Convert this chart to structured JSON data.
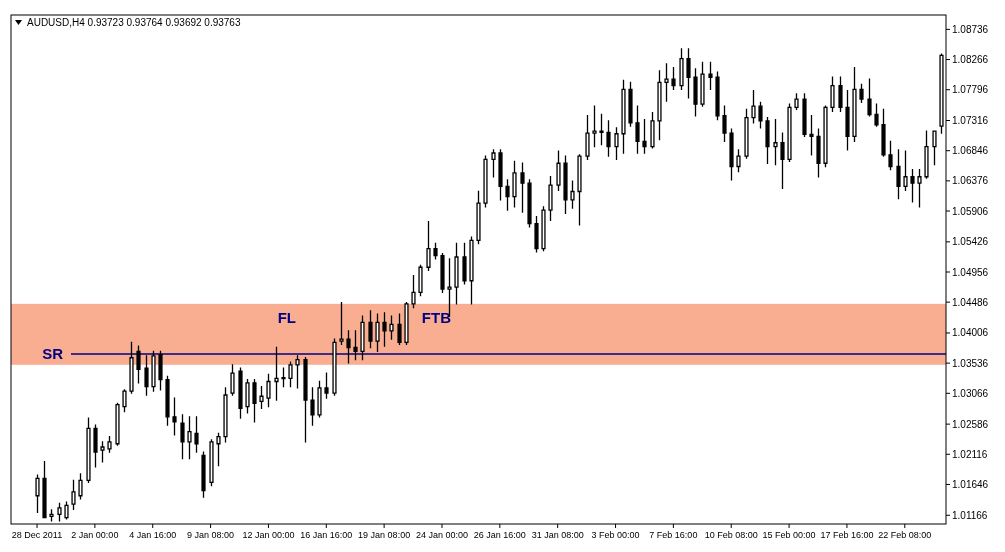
{
  "chart_data": {
    "type": "candlestick",
    "title": "AUDUSD,H4 0.93723 0.93764 0.93692 0.93763",
    "categories": [
      "28 Dec 2011",
      null,
      null,
      null,
      null,
      null,
      null,
      null,
      "2 Jan 00:00",
      null,
      null,
      null,
      null,
      null,
      null,
      null,
      "4 Jan 16:00",
      null,
      null,
      null,
      null,
      null,
      null,
      null,
      "9 Jan 08:00",
      null,
      null,
      null,
      null,
      null,
      null,
      null,
      "12 Jan 00:00",
      null,
      null,
      null,
      null,
      null,
      null,
      null,
      "16 Jan 16:00",
      null,
      null,
      null,
      null,
      null,
      null,
      null,
      "19 Jan 08:00",
      null,
      null,
      null,
      null,
      null,
      null,
      null,
      "24 Jan 00:00",
      null,
      null,
      null,
      null,
      null,
      null,
      null,
      "26 Jan 16:00",
      null,
      null,
      null,
      null,
      null,
      null,
      null,
      "31 Jan 08:00",
      null,
      null,
      null,
      null,
      null,
      null,
      null,
      "3 Feb 00:00",
      null,
      null,
      null,
      null,
      null,
      null,
      null,
      "7 Feb 16:00",
      null,
      null,
      null,
      null,
      null,
      null,
      null,
      "10 Feb 08:00",
      null,
      null,
      null,
      null,
      null,
      null,
      null,
      "15 Feb 00:00",
      null,
      null,
      null,
      null,
      null,
      null,
      null,
      "17 Feb 16:00",
      null,
      null,
      null,
      null,
      null,
      null,
      null,
      "22 Feb 08:00",
      null,
      null,
      null,
      null,
      null
    ],
    "ohlc": [
      [
        1.0147,
        1.0179,
        1.0121,
        1.0174
      ],
      [
        1.0174,
        1.02,
        1.0113,
        1.0113
      ],
      [
        1.0115,
        1.0125,
        1.0108,
        1.0118
      ],
      [
        1.0118,
        1.0135,
        1.0108,
        1.0128
      ],
      [
        1.0113,
        1.0137,
        1.0111,
        1.0132
      ],
      [
        1.0134,
        1.0171,
        1.0126,
        1.0153
      ],
      [
        1.0147,
        1.0181,
        1.0142,
        1.0171
      ],
      [
        1.0171,
        1.0268,
        1.0168,
        1.0252
      ],
      [
        1.0252,
        1.0257,
        1.0192,
        1.0215
      ],
      [
        1.0218,
        1.0231,
        1.02,
        1.0223
      ],
      [
        1.022,
        1.0239,
        1.0215,
        1.0231
      ],
      [
        1.0228,
        1.0291,
        1.0226,
        1.0289
      ],
      [
        1.0286,
        1.0312,
        1.0278,
        1.031
      ],
      [
        1.031,
        1.0386,
        1.0307,
        1.0362
      ],
      [
        1.0372,
        1.038,
        1.0323,
        1.0344
      ],
      [
        1.0346,
        1.0365,
        1.0304,
        1.0317
      ],
      [
        1.0317,
        1.0372,
        1.031,
        1.0365
      ],
      [
        1.0367,
        1.0372,
        1.0312,
        1.0328
      ],
      [
        1.0328,
        1.0333,
        1.0257,
        1.027
      ],
      [
        1.027,
        1.0299,
        1.0242,
        1.0262
      ],
      [
        1.026,
        1.0273,
        1.0205,
        1.0231
      ],
      [
        1.0231,
        1.027,
        1.0205,
        1.0247
      ],
      [
        1.0244,
        1.027,
        1.0215,
        1.0228
      ],
      [
        1.021,
        1.0215,
        1.0145,
        1.0155
      ],
      [
        1.0168,
        1.0234,
        1.0163,
        1.0231
      ],
      [
        1.0228,
        1.0244,
        1.0194,
        1.0239
      ],
      [
        1.0239,
        1.0315,
        1.0231,
        1.0304
      ],
      [
        1.0307,
        1.0351,
        1.0304,
        1.0338
      ],
      [
        1.0341,
        1.0346,
        1.0268,
        1.0283
      ],
      [
        1.0286,
        1.0328,
        1.0276,
        1.0323
      ],
      [
        1.0323,
        1.0328,
        1.0262,
        1.0291
      ],
      [
        1.0294,
        1.0317,
        1.0283,
        1.0302
      ],
      [
        1.0299,
        1.0336,
        1.0286,
        1.0325
      ],
      [
        1.0325,
        1.0378,
        1.0296,
        1.033
      ],
      [
        1.033,
        1.0346,
        1.0317,
        1.0331
      ],
      [
        1.033,
        1.0355,
        1.0317,
        1.0351
      ],
      [
        1.0351,
        1.0365,
        1.0315,
        1.0359
      ],
      [
        1.0359,
        1.0362,
        1.0231,
        1.0296
      ],
      [
        1.0296,
        1.0315,
        1.0257,
        1.0273
      ],
      [
        1.0273,
        1.0325,
        1.027,
        1.0315
      ],
      [
        1.0315,
        1.0338,
        1.0299,
        1.0307
      ],
      [
        1.0307,
        1.0391,
        1.0304,
        1.0386
      ],
      [
        1.0388,
        1.0448,
        1.0383,
        1.0391
      ],
      [
        1.0391,
        1.0404,
        1.0354,
        1.0378
      ],
      [
        1.0378,
        1.0404,
        1.0359,
        1.0372
      ],
      [
        1.0372,
        1.0427,
        1.0359,
        1.0417
      ],
      [
        1.0417,
        1.0435,
        1.0378,
        1.0388
      ],
      [
        1.0388,
        1.043,
        1.0372,
        1.0417
      ],
      [
        1.0417,
        1.0432,
        1.038,
        1.0404
      ],
      [
        1.0404,
        1.0427,
        1.0391,
        1.0414
      ],
      [
        1.0414,
        1.043,
        1.0383,
        1.0386
      ],
      [
        1.0386,
        1.0448,
        1.0383,
        1.0446
      ],
      [
        1.0446,
        1.049,
        1.044,
        1.0464
      ],
      [
        1.0464,
        1.0506,
        1.0459,
        1.0503
      ],
      [
        1.0503,
        1.0574,
        1.0498,
        1.0532
      ],
      [
        1.0532,
        1.054,
        1.0516,
        1.0521
      ],
      [
        1.0521,
        1.0524,
        1.0464,
        1.0469
      ],
      [
        1.0469,
        1.0516,
        1.0427,
        1.0472
      ],
      [
        1.0472,
        1.054,
        1.0446,
        1.0519
      ],
      [
        1.0519,
        1.054,
        1.0477,
        1.0482
      ],
      [
        1.0482,
        1.055,
        1.0446,
        1.0545
      ],
      [
        1.0545,
        1.0621,
        1.054,
        1.0603
      ],
      [
        1.0603,
        1.0676,
        1.0597,
        1.0671
      ],
      [
        1.0671,
        1.0686,
        1.0644,
        1.0681
      ],
      [
        1.0681,
        1.0686,
        1.0608,
        1.0629
      ],
      [
        1.0629,
        1.0639,
        1.0592,
        1.0613
      ],
      [
        1.0613,
        1.0668,
        1.0597,
        1.065
      ],
      [
        1.065,
        1.0665,
        1.0589,
        1.0634
      ],
      [
        1.0634,
        1.0639,
        1.0566,
        1.0571
      ],
      [
        1.0571,
        1.0582,
        1.0527,
        1.0532
      ],
      [
        1.0532,
        1.0597,
        1.0529,
        1.0592
      ],
      [
        1.0592,
        1.0644,
        1.0576,
        1.0631
      ],
      [
        1.0631,
        1.0684,
        1.0623,
        1.0665
      ],
      [
        1.0665,
        1.0676,
        1.0587,
        1.0608
      ],
      [
        1.0608,
        1.0637,
        1.0595,
        1.0621
      ],
      [
        1.0621,
        1.0678,
        1.0569,
        1.0676
      ],
      [
        1.0676,
        1.0739,
        1.0671,
        1.0712
      ],
      [
        1.0712,
        1.0754,
        1.0691,
        1.0715
      ],
      [
        1.0715,
        1.0741,
        1.0694,
        1.0713
      ],
      [
        1.0713,
        1.0731,
        1.0676,
        1.0691
      ],
      [
        1.0691,
        1.072,
        1.0671,
        1.0711
      ],
      [
        1.0711,
        1.0794,
        1.0681,
        1.078
      ],
      [
        1.078,
        1.0791,
        1.0723,
        1.0728
      ],
      [
        1.0728,
        1.0754,
        1.0681,
        1.0699
      ],
      [
        1.0699,
        1.0733,
        1.0681,
        1.0691
      ],
      [
        1.0691,
        1.0744,
        1.0689,
        1.0731
      ],
      [
        1.0731,
        1.0809,
        1.0702,
        1.0791
      ],
      [
        1.0791,
        1.082,
        1.0762,
        1.0796
      ],
      [
        1.0796,
        1.0814,
        1.078,
        1.0786
      ],
      [
        1.0786,
        1.0843,
        1.078,
        1.0828
      ],
      [
        1.0828,
        1.0843,
        1.0767,
        1.0799
      ],
      [
        1.0799,
        1.0812,
        1.0739,
        1.0757
      ],
      [
        1.0757,
        1.0822,
        1.0754,
        1.0804
      ],
      [
        1.0804,
        1.0822,
        1.078,
        1.0799
      ],
      [
        1.0799,
        1.0807,
        1.0733,
        1.0739
      ],
      [
        1.0739,
        1.0754,
        1.0699,
        1.0712
      ],
      [
        1.0712,
        1.0718,
        1.0639,
        1.066
      ],
      [
        1.066,
        1.0686,
        1.0652,
        1.0676
      ],
      [
        1.0676,
        1.0749,
        1.0673,
        1.0736
      ],
      [
        1.0736,
        1.0778,
        1.0728,
        1.0754
      ],
      [
        1.0754,
        1.076,
        1.072,
        1.0731
      ],
      [
        1.0731,
        1.0736,
        1.0665,
        1.0691
      ],
      [
        1.0691,
        1.0733,
        1.0663,
        1.0697
      ],
      [
        1.0697,
        1.0712,
        1.0626,
        1.0671
      ],
      [
        1.0671,
        1.0757,
        1.0668,
        1.0752
      ],
      [
        1.0752,
        1.0773,
        1.0749,
        1.0765
      ],
      [
        1.0765,
        1.0773,
        1.0707,
        1.071
      ],
      [
        1.071,
        1.0739,
        1.0678,
        1.0707
      ],
      [
        1.0707,
        1.0718,
        1.0644,
        1.0665
      ],
      [
        1.0665,
        1.0754,
        1.066,
        1.0752
      ],
      [
        1.0752,
        1.0799,
        1.0746,
        1.0786
      ],
      [
        1.0786,
        1.0799,
        1.0746,
        1.0752
      ],
      [
        1.0752,
        1.0778,
        1.0686,
        1.0707
      ],
      [
        1.0707,
        1.0814,
        1.0699,
        1.078
      ],
      [
        1.078,
        1.0788,
        1.076,
        1.0765
      ],
      [
        1.0765,
        1.0796,
        1.0739,
        1.0741
      ],
      [
        1.0741,
        1.0757,
        1.0723,
        1.0725
      ],
      [
        1.0725,
        1.0749,
        1.0676,
        1.0678
      ],
      [
        1.0678,
        1.0699,
        1.0655,
        1.066
      ],
      [
        1.066,
        1.0686,
        1.061,
        1.0629
      ],
      [
        1.0629,
        1.0684,
        1.0623,
        1.0644
      ],
      [
        1.0644,
        1.0655,
        1.0605,
        1.0634
      ],
      [
        1.0634,
        1.0655,
        1.0597,
        1.0644
      ],
      [
        1.0644,
        1.0715,
        1.0642,
        1.0691
      ],
      [
        1.0691,
        1.0715,
        1.0663,
        1.0715
      ],
      [
        1.0723,
        1.0835,
        1.0712,
        1.0833
      ]
    ],
    "ylim": [
      1.0103,
      1.0896
    ],
    "yticks": [
      1.01166,
      1.01646,
      1.02116,
      1.02586,
      1.03066,
      1.03536,
      1.04006,
      1.04486,
      1.04956,
      1.05426,
      1.05906,
      1.06376,
      1.06846,
      1.07316,
      1.07796,
      1.08266,
      1.08736
    ],
    "bands": [
      {
        "axis": "y",
        "from": 1.0351,
        "to": 1.0446,
        "color": "#f9a07e"
      }
    ],
    "ref_lines": [
      {
        "axis": "y",
        "value": 1.0368,
        "label": "SR",
        "color": "#000080"
      }
    ],
    "annotations": [
      "FL",
      "FTB"
    ]
  }
}
